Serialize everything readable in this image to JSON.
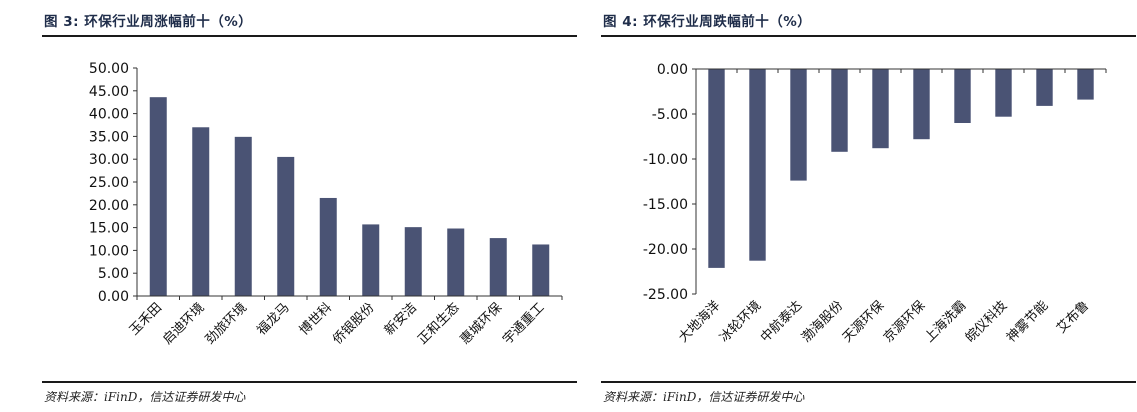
{
  "charts": [
    {
      "title": "图 3: 环保行业周涨幅前十（%）",
      "source": "资料来源：iFinD，信达证券研发中心"
    },
    {
      "title": "图 4: 环保行业周跌幅前十（%）",
      "source": "资料来源：iFinD，信达证券研发中心"
    }
  ],
  "chart_data": [
    {
      "type": "bar",
      "title": "环保行业周涨幅前十（%）",
      "categories": [
        "玉禾田",
        "启迪环境",
        "劲旅环境",
        "福龙马",
        "博世科",
        "侨银股份",
        "新安洁",
        "正和生态",
        "惠城环保",
        "宇通重工"
      ],
      "values": [
        43.6,
        37.0,
        34.9,
        30.5,
        21.5,
        15.7,
        15.1,
        14.8,
        12.7,
        11.3
      ],
      "ylim": [
        0,
        50
      ],
      "yticks": [
        "0.00",
        "5.00",
        "10.00",
        "15.00",
        "20.00",
        "25.00",
        "30.00",
        "35.00",
        "40.00",
        "45.00",
        "50.00"
      ],
      "bar_color": "#4a5374",
      "grid": false
    },
    {
      "type": "bar",
      "title": "环保行业周跌幅前十（%）",
      "categories": [
        "大地海洋",
        "冰轮环境",
        "中航泰达",
        "渤海股份",
        "天源环保",
        "京源环保",
        "上海洗霸",
        "皖仪科技",
        "神雾节能",
        "艾布鲁"
      ],
      "values": [
        -22.1,
        -21.3,
        -12.4,
        -9.2,
        -8.8,
        -7.8,
        -6.0,
        -5.3,
        -4.1,
        -3.4
      ],
      "ylim": [
        -25,
        0
      ],
      "yticks": [
        "-25.00",
        "-20.00",
        "-15.00",
        "-10.00",
        "-5.00",
        "0.00"
      ],
      "bar_color": "#4a5374",
      "grid": false
    }
  ]
}
